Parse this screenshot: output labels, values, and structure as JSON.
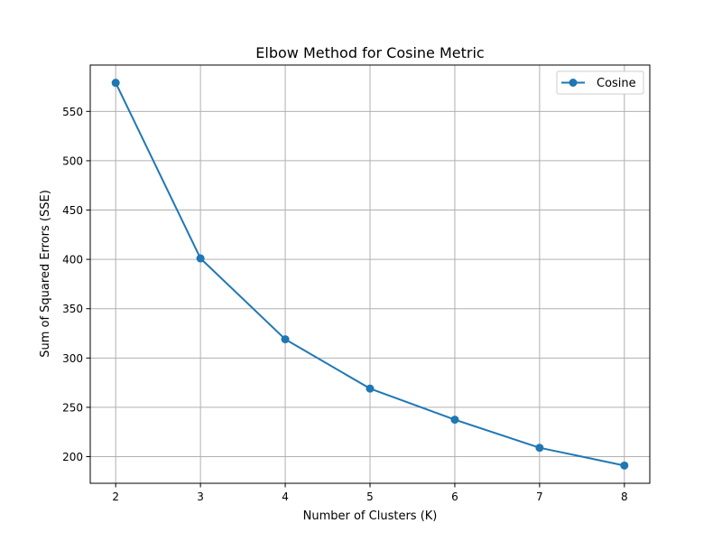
{
  "chart_data": {
    "type": "line",
    "title": "Elbow Method for Cosine Metric",
    "xlabel": "Number of Clusters (K)",
    "ylabel": "Sum of Squared Errors (SSE)",
    "xlim": [
      1.7,
      8.3
    ],
    "ylim": [
      173,
      597
    ],
    "xticks": [
      2,
      3,
      4,
      5,
      6,
      7,
      8
    ],
    "yticks": [
      200,
      250,
      300,
      350,
      400,
      450,
      500,
      550
    ],
    "grid": true,
    "legend_position": "top-right",
    "x": [
      2,
      3,
      4,
      5,
      6,
      7,
      8
    ],
    "series": [
      {
        "name": "Cosine",
        "color": "#1f77b4",
        "marker": "circle",
        "values": [
          579,
          401,
          319,
          269,
          237.5,
          209,
          191
        ]
      }
    ]
  }
}
